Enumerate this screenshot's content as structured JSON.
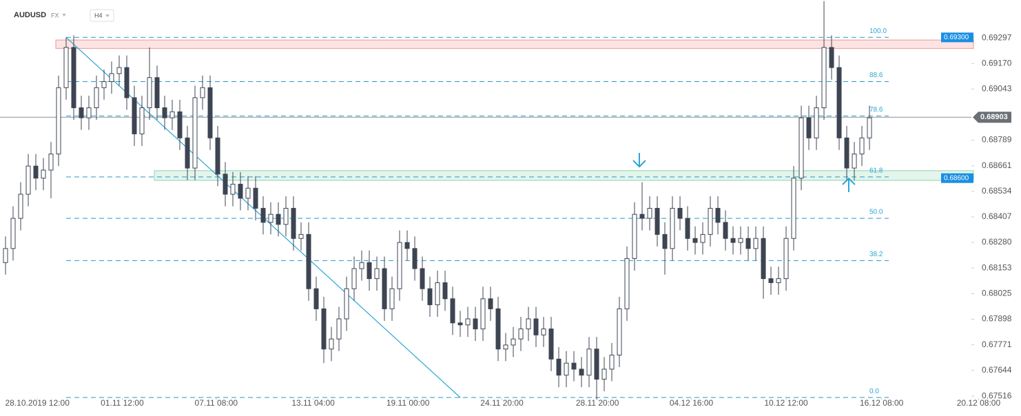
{
  "chart_data": {
    "type": "candlestick",
    "title": "AUDUSD",
    "market": "FX",
    "timeframe": "H4",
    "x": [
      0,
      1,
      2,
      3,
      4,
      5,
      6,
      7,
      8,
      9,
      10,
      11,
      12,
      13,
      14,
      15,
      16,
      17,
      18,
      19,
      20,
      21,
      22,
      23,
      24,
      25,
      26,
      27,
      28,
      29,
      30,
      31,
      32,
      33,
      34,
      35,
      36,
      37,
      38,
      39,
      40,
      41,
      42,
      43,
      44,
      45,
      46,
      47,
      48,
      49,
      50,
      51,
      52,
      53,
      54,
      55,
      56,
      57,
      58,
      59,
      60,
      61,
      62,
      63,
      64,
      65,
      66,
      67,
      68,
      69,
      70,
      71,
      72,
      73,
      74,
      75,
      76,
      77,
      78,
      79,
      80,
      81,
      82,
      83,
      84,
      85,
      86,
      87,
      88,
      89,
      90,
      91,
      92,
      93,
      94,
      95,
      96,
      97,
      98,
      99,
      100,
      101,
      102,
      103,
      104,
      105,
      106,
      107,
      108,
      109,
      110,
      111,
      112,
      113,
      114
    ],
    "open": [
      0.6818,
      0.6825,
      0.684,
      0.6852,
      0.6866,
      0.686,
      0.6864,
      0.6872,
      0.6905,
      0.6925,
      0.6895,
      0.689,
      0.6895,
      0.6905,
      0.6908,
      0.6912,
      0.6915,
      0.69,
      0.6882,
      0.6895,
      0.691,
      0.6895,
      0.689,
      0.6893,
      0.688,
      0.6865,
      0.69,
      0.6905,
      0.688,
      0.6862,
      0.6852,
      0.6857,
      0.685,
      0.6855,
      0.6845,
      0.6838,
      0.6842,
      0.6837,
      0.6845,
      0.683,
      0.6832,
      0.6805,
      0.6795,
      0.6775,
      0.678,
      0.679,
      0.6805,
      0.6815,
      0.6818,
      0.681,
      0.6815,
      0.6795,
      0.6805,
      0.6828,
      0.6825,
      0.6815,
      0.6805,
      0.6797,
      0.6808,
      0.68,
      0.6788,
      0.6787,
      0.679,
      0.6785,
      0.68,
      0.6795,
      0.6775,
      0.6777,
      0.678,
      0.6785,
      0.679,
      0.6782,
      0.6785,
      0.677,
      0.6762,
      0.6768,
      0.6765,
      0.6762,
      0.6775,
      0.676,
      0.6765,
      0.6772,
      0.6795,
      0.682,
      0.6842,
      0.684,
      0.6845,
      0.6832,
      0.6825,
      0.6845,
      0.684,
      0.683,
      0.6828,
      0.6832,
      0.6845,
      0.6838,
      0.683,
      0.6828,
      0.683,
      0.6825,
      0.683,
      0.681,
      0.6808,
      0.681,
      0.683,
      0.686,
      0.689,
      0.688,
      0.6895,
      0.6925,
      0.6915,
      0.688,
      0.6865,
      0.6872,
      0.688
    ],
    "high": [
      0.6831,
      0.6846,
      0.6858,
      0.6872,
      0.6872,
      0.687,
      0.6878,
      0.6911,
      0.693,
      0.6931,
      0.6901,
      0.6901,
      0.6911,
      0.6914,
      0.6918,
      0.6921,
      0.6921,
      0.6906,
      0.6901,
      0.6925,
      0.6916,
      0.6901,
      0.6899,
      0.6899,
      0.6886,
      0.6906,
      0.6911,
      0.6911,
      0.6886,
      0.6868,
      0.6863,
      0.6863,
      0.6861,
      0.6861,
      0.6851,
      0.6848,
      0.6848,
      0.6851,
      0.6851,
      0.6838,
      0.6838,
      0.6811,
      0.6801,
      0.6786,
      0.6796,
      0.6811,
      0.6821,
      0.6824,
      0.6824,
      0.6821,
      0.6821,
      0.6811,
      0.6834,
      0.6834,
      0.6831,
      0.6821,
      0.6811,
      0.6814,
      0.6814,
      0.6806,
      0.6794,
      0.6796,
      0.6796,
      0.6806,
      0.6806,
      0.6801,
      0.6783,
      0.6786,
      0.6791,
      0.6796,
      0.6796,
      0.6791,
      0.6791,
      0.6776,
      0.6774,
      0.6774,
      0.6771,
      0.6781,
      0.6781,
      0.6771,
      0.6778,
      0.6801,
      0.6826,
      0.6848,
      0.6858,
      0.6851,
      0.6851,
      0.6838,
      0.6851,
      0.6851,
      0.6846,
      0.6836,
      0.6838,
      0.6851,
      0.6851,
      0.6844,
      0.6836,
      0.6836,
      0.6836,
      0.6836,
      0.6836,
      0.6816,
      0.6816,
      0.6836,
      0.6866,
      0.6896,
      0.6896,
      0.6901,
      0.6948,
      0.6931,
      0.6921,
      0.6886,
      0.6878,
      0.6886,
      0.6896
    ],
    "low": [
      0.6812,
      0.6819,
      0.6834,
      0.6846,
      0.6854,
      0.6854,
      0.685,
      0.6866,
      0.6899,
      0.6889,
      0.6884,
      0.6884,
      0.6889,
      0.6899,
      0.6902,
      0.6906,
      0.6894,
      0.6876,
      0.6876,
      0.6889,
      0.6889,
      0.6884,
      0.6884,
      0.6874,
      0.6859,
      0.6859,
      0.6894,
      0.6874,
      0.6856,
      0.6846,
      0.6846,
      0.6844,
      0.6844,
      0.6839,
      0.6832,
      0.6832,
      0.6831,
      0.6831,
      0.6824,
      0.6824,
      0.6799,
      0.6789,
      0.6768,
      0.6769,
      0.6774,
      0.6784,
      0.6799,
      0.6809,
      0.6804,
      0.6804,
      0.6789,
      0.6789,
      0.6799,
      0.6819,
      0.6809,
      0.6799,
      0.6791,
      0.6791,
      0.6794,
      0.6782,
      0.6781,
      0.6781,
      0.6779,
      0.6779,
      0.6789,
      0.6769,
      0.6769,
      0.6771,
      0.6774,
      0.6779,
      0.6776,
      0.6776,
      0.6764,
      0.6756,
      0.6756,
      0.6759,
      0.6756,
      0.6756,
      0.675,
      0.6754,
      0.6759,
      0.6766,
      0.6789,
      0.6814,
      0.6834,
      0.6834,
      0.6826,
      0.6812,
      0.6819,
      0.6834,
      0.6824,
      0.6822,
      0.6822,
      0.6826,
      0.6832,
      0.6824,
      0.6822,
      0.6822,
      0.6819,
      0.6819,
      0.68,
      0.6802,
      0.6802,
      0.6804,
      0.6824,
      0.6854,
      0.6874,
      0.6874,
      0.6889,
      0.6909,
      0.6874,
      0.6859,
      0.6859,
      0.6866,
      0.6874
    ],
    "close": [
      0.6825,
      0.684,
      0.6852,
      0.6866,
      0.686,
      0.6864,
      0.6872,
      0.6905,
      0.6925,
      0.6895,
      0.689,
      0.6895,
      0.6905,
      0.6908,
      0.6912,
      0.6915,
      0.69,
      0.6882,
      0.6895,
      0.691,
      0.6895,
      0.689,
      0.6893,
      0.688,
      0.6865,
      0.69,
      0.6905,
      0.688,
      0.6862,
      0.6852,
      0.6857,
      0.685,
      0.6855,
      0.6845,
      0.6838,
      0.6842,
      0.6837,
      0.6845,
      0.683,
      0.6832,
      0.6805,
      0.6795,
      0.6775,
      0.678,
      0.679,
      0.6805,
      0.6815,
      0.6818,
      0.681,
      0.6815,
      0.6795,
      0.6805,
      0.6828,
      0.6825,
      0.6815,
      0.6805,
      0.6797,
      0.6808,
      0.68,
      0.6788,
      0.6787,
      0.679,
      0.6785,
      0.68,
      0.6795,
      0.6775,
      0.6777,
      0.678,
      0.6785,
      0.679,
      0.6782,
      0.6785,
      0.677,
      0.6762,
      0.6768,
      0.6765,
      0.6762,
      0.6775,
      0.676,
      0.6765,
      0.6772,
      0.6795,
      0.682,
      0.6842,
      0.684,
      0.6845,
      0.6832,
      0.6825,
      0.6845,
      0.684,
      0.683,
      0.6828,
      0.6832,
      0.6845,
      0.6838,
      0.683,
      0.6828,
      0.683,
      0.6825,
      0.683,
      0.681,
      0.6808,
      0.681,
      0.683,
      0.686,
      0.689,
      0.688,
      0.6895,
      0.6925,
      0.6915,
      0.688,
      0.6865,
      0.6872,
      0.688,
      0.689
    ],
    "up_color": "#ffffff",
    "down_color": "#3d4452",
    "xlim": [
      -0.727,
      127.45
    ],
    "xticks": [
      {
        "value": 4.2,
        "label": "28.10.2019 12:00"
      },
      {
        "value": 15.4,
        "label": "01.11 12:00"
      },
      {
        "value": 27.8,
        "label": "07.11 08:00"
      },
      {
        "value": 40.6,
        "label": "13.11 04:00"
      },
      {
        "value": 53.1,
        "label": "19.11 00:00"
      },
      {
        "value": 65.5,
        "label": "24.11 20:00"
      },
      {
        "value": 78.1,
        "label": "28.11 20:00"
      },
      {
        "value": 90.5,
        "label": "04.12 16:00"
      },
      {
        "value": 103,
        "label": "10.12 12:00"
      },
      {
        "value": 115.6,
        "label": "16.12 08:00"
      },
      {
        "value": 128.4,
        "label": "20.12 08:00"
      }
    ],
    "ylim": [
      0.67506,
      0.69486
    ],
    "yticks": [
      0.69297,
      {
        "value": 0.6917,
        "label": "0.69170"
      },
      0.69043,
      0.68789,
      0.68661,
      0.68534,
      0.68407,
      {
        "value": 0.6828,
        "label": "0.68280"
      },
      0.68153,
      0.68025,
      0.67898,
      0.67771,
      0.67644,
      0.67516
    ],
    "current_price": 0.68903,
    "zones": [
      {
        "range": [
          0.69245,
          0.69287
        ],
        "price": {
          "value": 0.693,
          "label": "0.69300"
        },
        "color": "#fde3e3"
      },
      {
        "range": [
          0.68589,
          0.68637
        ],
        "price": {
          "value": 0.686,
          "label": "0.68600"
        },
        "color": "#e3f5ec"
      }
    ],
    "trendline": {
      "from": [
        8,
        0.693
      ],
      "to": [
        60,
        0.67509
      ]
    },
    "fib_levels": [
      {
        "level": {
          "value": 100,
          "label": "100.0"
        },
        "price": 0.693
      },
      {
        "level": 88.6,
        "price": 0.6908
      },
      {
        "level": 78.6,
        "price": 0.68909
      },
      {
        "level": 61.8,
        "price": 0.68606
      },
      {
        "level": {
          "value": 50,
          "label": "50.0"
        },
        "price": 0.684
      },
      {
        "level": 38.2,
        "price": 0.6819
      },
      {
        "level": {
          "value": 0,
          "label": "0.0"
        },
        "price": 0.67509
      }
    ]
  }
}
